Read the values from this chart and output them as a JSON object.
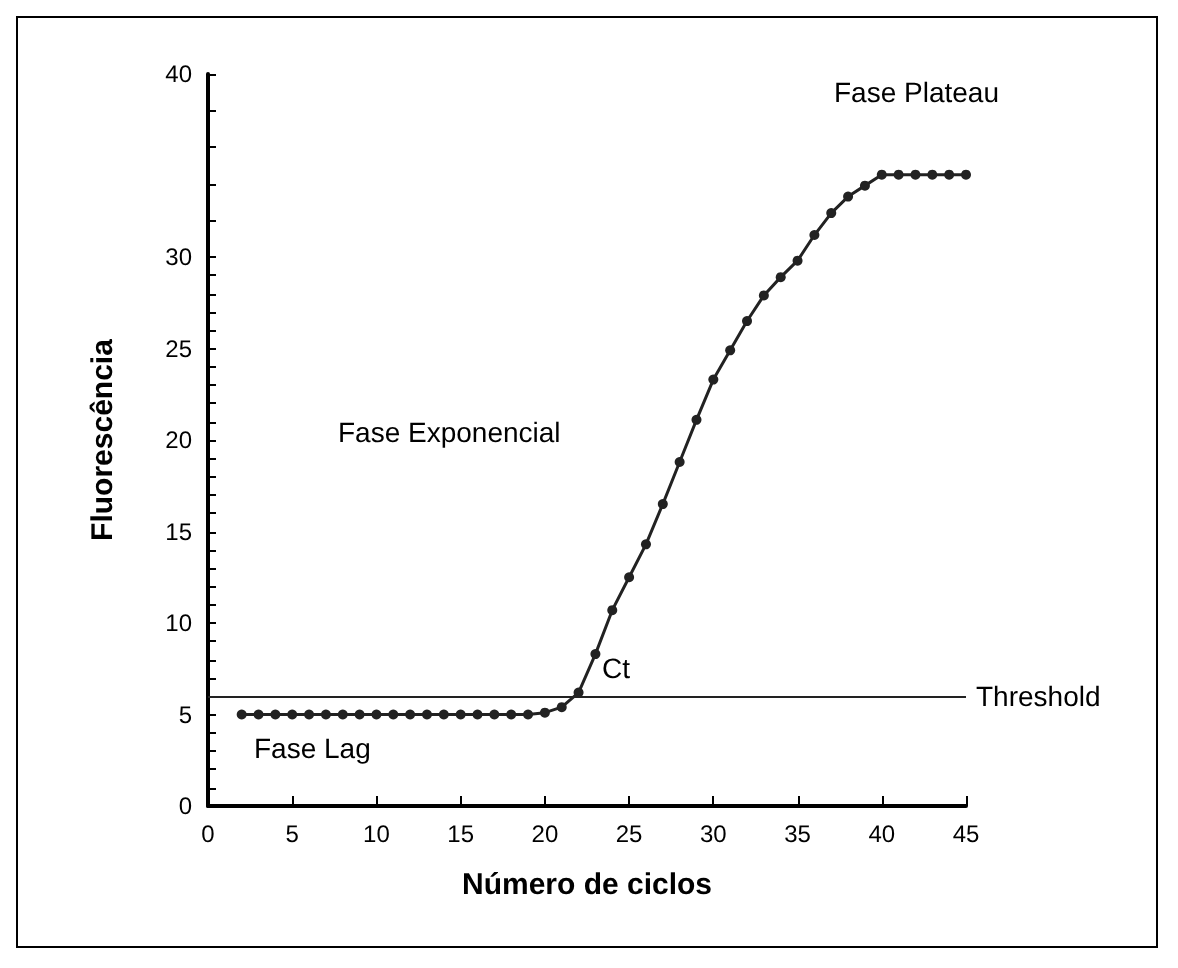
{
  "chart_data": {
    "type": "line",
    "xlabel": "Número de ciclos",
    "ylabel": "Fluorescência",
    "x": [
      2,
      3,
      4,
      5,
      6,
      7,
      8,
      9,
      10,
      11,
      12,
      13,
      14,
      15,
      16,
      17,
      18,
      19,
      20,
      21,
      22,
      23,
      24,
      25,
      26,
      27,
      28,
      29,
      30,
      31,
      32,
      33,
      34,
      35,
      36,
      37,
      38,
      39,
      40,
      41,
      42,
      43,
      44,
      45
    ],
    "series": [
      {
        "color": "#222222",
        "values": [
          5,
          5,
          5,
          5,
          5,
          5,
          5,
          5,
          5,
          5,
          5,
          5,
          5,
          5,
          5,
          5,
          5,
          5,
          5.1,
          5.4,
          6.2,
          8.3,
          10.7,
          12.5,
          14.3,
          16.5,
          18.8,
          21.1,
          23.3,
          24.9,
          26.5,
          27.9,
          28.9,
          29.8,
          31.2,
          32.4,
          33.3,
          33.9,
          34.5,
          34.5,
          34.5,
          34.5,
          34.5,
          34.5
        ]
      }
    ],
    "xlim": [
      0,
      45
    ],
    "xticks": [
      0,
      5,
      10,
      15,
      20,
      25,
      30,
      35,
      40,
      45
    ],
    "ylim": [
      0,
      40
    ],
    "yticks": [
      0,
      5,
      10,
      15,
      20,
      25,
      30,
      40
    ],
    "ref_lines": [
      {
        "axis": "y",
        "value": 6,
        "label": "Threshold",
        "color": "#222222"
      }
    ],
    "annotations": [
      "Fase Plateau",
      "Fase Exponencial",
      "Fase Lag",
      "Ct"
    ],
    "grid": false,
    "marker": "circle",
    "line_style": "solid"
  }
}
